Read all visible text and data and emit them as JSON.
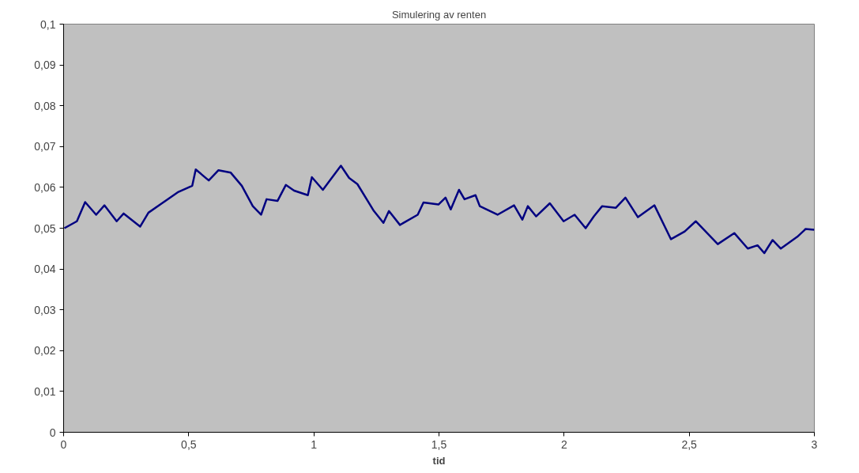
{
  "chart_data": {
    "type": "line",
    "title": "Simulering av renten",
    "xlabel": "tid",
    "x": [
      0.003,
      0.053,
      0.086,
      0.13,
      0.163,
      0.212,
      0.24,
      0.306,
      0.339,
      0.393,
      0.459,
      0.514,
      0.528,
      0.58,
      0.619,
      0.668,
      0.712,
      0.756,
      0.789,
      0.811,
      0.855,
      0.888,
      0.921,
      0.976,
      0.992,
      1.036,
      1.108,
      1.141,
      1.174,
      1.24,
      1.278,
      1.3,
      1.344,
      1.415,
      1.438,
      1.498,
      1.526,
      1.547,
      1.58,
      1.602,
      1.646,
      1.663,
      1.734,
      1.8,
      1.833,
      1.855,
      1.888,
      1.943,
      1.998,
      2.042,
      2.086,
      2.119,
      2.152,
      2.207,
      2.245,
      2.295,
      2.361,
      2.427,
      2.482,
      2.526,
      2.614,
      2.68,
      2.734,
      2.773,
      2.8,
      2.833,
      2.866,
      2.932,
      2.965,
      3.0
    ],
    "series": [
      {
        "color": "#000080",
        "values": [
          0.05,
          0.0517,
          0.0564,
          0.0533,
          0.0556,
          0.0517,
          0.0536,
          0.0504,
          0.0538,
          0.0561,
          0.0589,
          0.0604,
          0.0644,
          0.0617,
          0.0642,
          0.0636,
          0.0604,
          0.0554,
          0.0533,
          0.0571,
          0.0567,
          0.0606,
          0.0592,
          0.0581,
          0.0625,
          0.0594,
          0.0653,
          0.0623,
          0.0608,
          0.0542,
          0.0513,
          0.0542,
          0.0508,
          0.0533,
          0.0563,
          0.0558,
          0.0575,
          0.0546,
          0.0594,
          0.0571,
          0.0581,
          0.0554,
          0.0533,
          0.0556,
          0.0521,
          0.0554,
          0.0529,
          0.0561,
          0.0517,
          0.0533,
          0.05,
          0.0529,
          0.0554,
          0.055,
          0.0575,
          0.0527,
          0.0556,
          0.0473,
          0.0492,
          0.0517,
          0.0461,
          0.0488,
          0.045,
          0.0458,
          0.0439,
          0.0471,
          0.045,
          0.0479,
          0.0498,
          0.0496
        ]
      }
    ],
    "xlim": [
      0,
      3
    ],
    "xticks": [
      {
        "value": 0,
        "label": "0"
      },
      {
        "value": 0.5,
        "label": "0,5"
      },
      {
        "value": 1,
        "label": "1"
      },
      {
        "value": 1.5,
        "label": "1,5"
      },
      {
        "value": 2,
        "label": "2"
      },
      {
        "value": 2.5,
        "label": "2,5"
      },
      {
        "value": 3,
        "label": "3"
      }
    ],
    "ylim": [
      0,
      0.1
    ],
    "yticks": [
      {
        "value": 0,
        "label": "0"
      },
      {
        "value": 0.01,
        "label": "0,01"
      },
      {
        "value": 0.02,
        "label": "0,02"
      },
      {
        "value": 0.03,
        "label": "0,03"
      },
      {
        "value": 0.04,
        "label": "0,04"
      },
      {
        "value": 0.05,
        "label": "0,05"
      },
      {
        "value": 0.06,
        "label": "0,06"
      },
      {
        "value": 0.07,
        "label": "0,07"
      },
      {
        "value": 0.08,
        "label": "0,08"
      },
      {
        "value": 0.09,
        "label": "0,09"
      },
      {
        "value": 0.1,
        "label": "0,1"
      }
    ],
    "grid": false
  }
}
